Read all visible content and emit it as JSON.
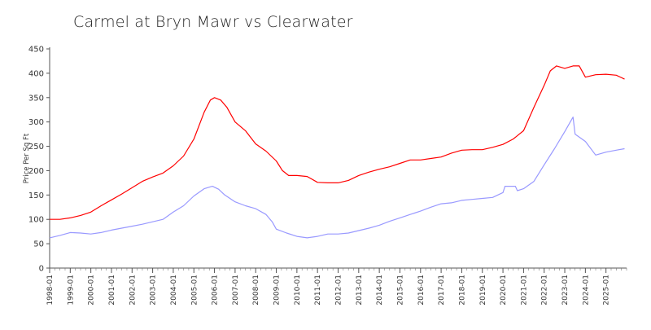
{
  "chart_data": {
    "type": "line",
    "title": "Carmel at Bryn Mawr vs Clearwater",
    "xlabel": "",
    "ylabel": "Price Per Sq Ft",
    "ylim": [
      0,
      450
    ],
    "y_ticks": [
      0,
      50,
      100,
      150,
      200,
      250,
      300,
      350,
      400,
      450
    ],
    "x_range": [
      1998.0,
      2026.0
    ],
    "x_tick_labels": [
      "1998-01",
      "1999-01",
      "2000-01",
      "2001-01",
      "2002-01",
      "2003-01",
      "2004-01",
      "2005-01",
      "2006-01",
      "2007-01",
      "2008-01",
      "2009-01",
      "2010-01",
      "2011-01",
      "2012-01",
      "2013-01",
      "2014-01",
      "2015-01",
      "2016-01",
      "2017-01",
      "2018-01",
      "2019-01",
      "2020-01",
      "2021-01",
      "2022-01",
      "2023-01",
      "2024-01",
      "2025-01"
    ],
    "grid": false,
    "legend": "none",
    "series": [
      {
        "name": "Carmel at Bryn Mawr",
        "color": "#ff0000",
        "x": [
          1998.0,
          1998.5,
          1999.0,
          1999.5,
          2000.0,
          2000.5,
          2001.0,
          2001.5,
          2002.0,
          2002.5,
          2003.0,
          2003.5,
          2004.0,
          2004.5,
          2005.0,
          2005.5,
          2005.8,
          2006.0,
          2006.3,
          2006.6,
          2007.0,
          2007.5,
          2008.0,
          2008.5,
          2009.0,
          2009.3,
          2009.6,
          2010.0,
          2010.5,
          2011.0,
          2011.5,
          2012.0,
          2012.5,
          2013.0,
          2013.5,
          2014.0,
          2014.5,
          2015.0,
          2015.5,
          2016.0,
          2016.5,
          2017.0,
          2017.5,
          2018.0,
          2018.5,
          2019.0,
          2019.5,
          2020.0,
          2020.5,
          2021.0,
          2021.5,
          2022.0,
          2022.3,
          2022.6,
          2023.0,
          2023.4,
          2023.7,
          2024.0,
          2024.5,
          2025.0,
          2025.5,
          2025.9
        ],
        "values": [
          100,
          100,
          103,
          108,
          115,
          128,
          140,
          152,
          165,
          178,
          187,
          195,
          210,
          230,
          265,
          320,
          345,
          350,
          345,
          330,
          300,
          282,
          255,
          240,
          220,
          200,
          190,
          190,
          188,
          176,
          175,
          175,
          180,
          190,
          197,
          203,
          208,
          215,
          222,
          222,
          225,
          228,
          236,
          242,
          243,
          243,
          248,
          254,
          265,
          282,
          330,
          375,
          405,
          415,
          410,
          415,
          415,
          392,
          397,
          398,
          396,
          388
        ]
      },
      {
        "name": "Clearwater",
        "color": "#9999ff",
        "x": [
          1998.0,
          1998.5,
          1999.0,
          1999.5,
          2000.0,
          2000.5,
          2001.0,
          2001.5,
          2002.0,
          2002.5,
          2003.0,
          2003.5,
          2004.0,
          2004.5,
          2005.0,
          2005.5,
          2005.9,
          2006.2,
          2006.5,
          2007.0,
          2007.5,
          2008.0,
          2008.5,
          2008.8,
          2009.0,
          2009.5,
          2010.0,
          2010.5,
          2011.0,
          2011.5,
          2012.0,
          2012.5,
          2013.0,
          2013.5,
          2014.0,
          2014.5,
          2015.0,
          2015.5,
          2016.0,
          2016.5,
          2017.0,
          2017.5,
          2018.0,
          2018.5,
          2019.0,
          2019.5,
          2020.0,
          2020.1,
          2020.6,
          2020.7,
          2021.0,
          2021.5,
          2022.0,
          2022.5,
          2023.0,
          2023.4,
          2023.5,
          2024.0,
          2024.5,
          2025.0,
          2025.5,
          2025.9
        ],
        "values": [
          62,
          67,
          73,
          72,
          70,
          73,
          78,
          82,
          86,
          90,
          95,
          100,
          115,
          128,
          148,
          163,
          168,
          162,
          150,
          136,
          128,
          122,
          110,
          95,
          80,
          72,
          65,
          62,
          65,
          70,
          70,
          72,
          77,
          82,
          88,
          96,
          103,
          110,
          117,
          125,
          132,
          134,
          139,
          141,
          143,
          145,
          155,
          168,
          168,
          159,
          163,
          178,
          212,
          245,
          280,
          310,
          275,
          260,
          232,
          238,
          242,
          245
        ]
      }
    ]
  }
}
